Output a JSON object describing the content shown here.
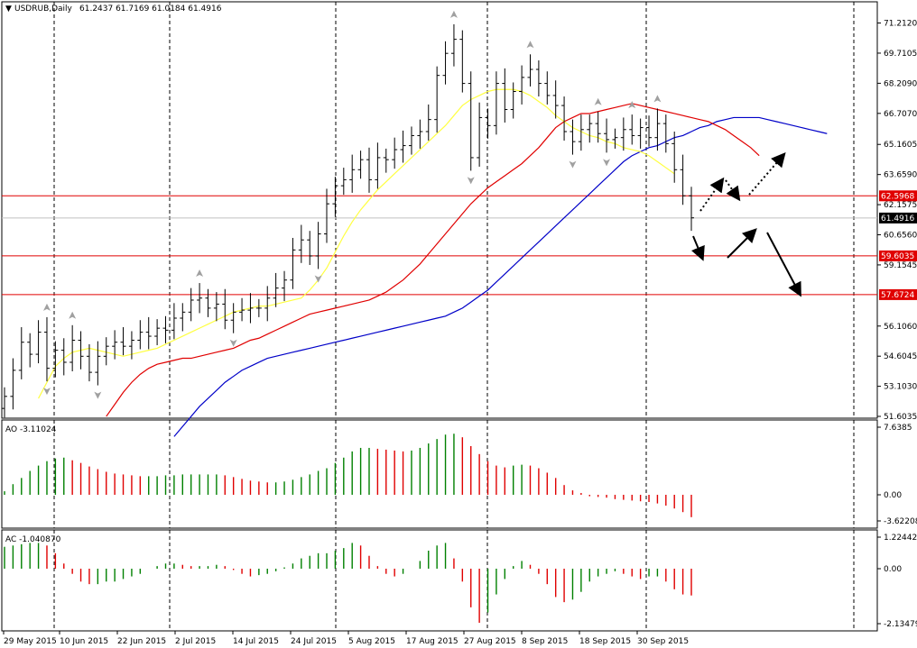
{
  "header": {
    "symbol": "USDRUB,Daily",
    "ohlc": "61.2437 61.7169 61.0184 61.4916"
  },
  "colors": {
    "background": "#ffffff",
    "grid": "#000000",
    "bars": "#000000",
    "jaw": "#0000c8",
    "teeth": "#e00000",
    "lips": "#ffff40",
    "level_line": "#e00000",
    "up_bar": "#008000",
    "down_bar": "#e00000",
    "price_tag_bg": "#000000",
    "level_tag_bg": "#e00000"
  },
  "chart_data": [
    {
      "type": "candlestick",
      "title": "USDRUB,Daily",
      "ylim": [
        51.6035,
        72.0
      ],
      "y_ticks": [
        "71.2120",
        "69.7105",
        "68.2090",
        "66.7070",
        "65.1605",
        "63.6590",
        "62.1575",
        "60.6560",
        "59.1545",
        "56.1060",
        "54.6045",
        "53.1030",
        "51.6035"
      ],
      "x_labels": [
        "29 May 2015",
        "10 Jun 2015",
        "22 Jun 2015",
        "2 Jul 2015",
        "14 Jul 2015",
        "24 Jul 2015",
        "5 Aug 2015",
        "17 Aug 2015",
        "27 Aug 2015",
        "8 Sep 2015",
        "18 Sep 2015",
        "30 Sep 2015"
      ],
      "current_price": "61.4916",
      "levels": [
        "62.5968",
        "59.6035",
        "57.6724"
      ],
      "series": [
        {
          "name": "close",
          "values": [
            52.6,
            53.9,
            55.3,
            54.7,
            55.8,
            54.0,
            54.9,
            54.3,
            55.4,
            54.6,
            53.8,
            54.6,
            55.1,
            55.3,
            55.1,
            55.4,
            55.8,
            55.6,
            56.0,
            55.9,
            56.5,
            56.8,
            57.4,
            57.5,
            57.0,
            57.2,
            56.4,
            56.8,
            56.9,
            57.0,
            57.0,
            57.5,
            58.0,
            58.4,
            59.9,
            60.4,
            59.6,
            60.7,
            62.2,
            63.1,
            63.4,
            63.9,
            64.4,
            63.4,
            64.5,
            64.4,
            64.9,
            65.1,
            65.6,
            65.8,
            66.4,
            68.6,
            69.7,
            70.4,
            68.2,
            64.5,
            66.5,
            66.1,
            68.2,
            66.9,
            67.8,
            68.5,
            68.9,
            68.2,
            67.6,
            67.1,
            65.8,
            65.3,
            65.9,
            66.2,
            65.7,
            65.4,
            65.5,
            65.9,
            65.6,
            66.0,
            65.5,
            66.2,
            65.2,
            63.9,
            62.6,
            61.5
          ]
        },
        {
          "name": "jaw",
          "values": [
            50.6,
            51.1,
            51.6,
            52.1,
            52.5,
            52.9,
            53.3,
            53.6,
            53.9,
            54.1,
            54.3,
            54.5,
            54.6,
            54.7,
            54.8,
            54.9,
            55.0,
            55.1,
            55.2,
            55.3,
            55.4,
            55.5,
            55.6,
            55.7,
            55.8,
            55.9,
            56.0,
            56.1,
            56.2,
            56.3,
            56.4,
            56.5,
            56.6,
            56.8,
            57.0,
            57.3,
            57.6,
            57.9,
            58.3,
            58.7,
            59.1,
            59.5,
            59.9,
            60.3,
            60.7,
            61.1,
            61.5,
            61.9,
            62.3,
            62.7,
            63.1,
            63.5,
            63.9,
            64.3,
            64.6,
            64.8,
            65.0,
            65.1,
            65.3,
            65.5,
            65.6,
            65.8,
            66.0,
            66.1,
            66.3,
            66.4,
            66.5,
            66.5,
            66.5,
            66.5,
            66.4,
            66.3,
            66.2,
            66.1,
            66.0,
            65.9,
            65.8,
            65.7
          ]
        },
        {
          "name": "teeth",
          "values": [
            51.6,
            52.2,
            52.8,
            53.3,
            53.7,
            54.0,
            54.2,
            54.3,
            54.4,
            54.5,
            54.5,
            54.6,
            54.7,
            54.8,
            54.9,
            55.0,
            55.2,
            55.4,
            55.5,
            55.7,
            55.9,
            56.1,
            56.3,
            56.5,
            56.7,
            56.8,
            56.9,
            57.0,
            57.1,
            57.2,
            57.3,
            57.4,
            57.6,
            57.8,
            58.1,
            58.4,
            58.8,
            59.2,
            59.7,
            60.2,
            60.7,
            61.2,
            61.7,
            62.2,
            62.6,
            63.0,
            63.3,
            63.6,
            63.9,
            64.2,
            64.6,
            65.0,
            65.5,
            66.0,
            66.3,
            66.5,
            66.7,
            66.7,
            66.8,
            66.9,
            67.0,
            67.1,
            67.2,
            67.1,
            67.0,
            66.9,
            66.8,
            66.7,
            66.6,
            66.5,
            66.4,
            66.3,
            66.1,
            65.9,
            65.6,
            65.3,
            65.0,
            64.6
          ]
        },
        {
          "name": "lips",
          "values": [
            52.5,
            53.3,
            54.1,
            54.5,
            54.8,
            54.9,
            55.0,
            54.9,
            54.8,
            54.7,
            54.6,
            54.7,
            54.8,
            54.9,
            55.0,
            55.2,
            55.4,
            55.6,
            55.8,
            56.0,
            56.2,
            56.4,
            56.6,
            56.8,
            56.9,
            57.0,
            57.1,
            57.1,
            57.2,
            57.3,
            57.4,
            57.5,
            57.9,
            58.4,
            59.0,
            59.8,
            60.6,
            61.3,
            61.9,
            62.4,
            62.9,
            63.3,
            63.7,
            64.1,
            64.5,
            64.9,
            65.3,
            65.7,
            66.1,
            66.6,
            67.1,
            67.4,
            67.6,
            67.8,
            67.9,
            67.9,
            67.9,
            67.8,
            67.6,
            67.3,
            67.0,
            66.6,
            66.3,
            66.0,
            65.8,
            65.6,
            65.5,
            65.3,
            65.2,
            65.0,
            64.9,
            64.8,
            64.6,
            64.3,
            64.0,
            63.7
          ]
        }
      ]
    },
    {
      "type": "bar",
      "title": "AO -3.11024",
      "ylim": [
        -3.62208,
        7.6385
      ],
      "y_ticks": [
        "7.6385",
        "0.00",
        "-3.62208"
      ],
      "values": [
        0.4,
        1.2,
        1.9,
        2.7,
        3.3,
        3.8,
        4.1,
        4.2,
        3.9,
        3.6,
        3.2,
        2.9,
        2.6,
        2.4,
        2.3,
        2.2,
        2.1,
        2.1,
        2.1,
        2.2,
        2.2,
        2.3,
        2.3,
        2.3,
        2.3,
        2.3,
        2.2,
        2.0,
        1.8,
        1.6,
        1.5,
        1.4,
        1.4,
        1.5,
        1.7,
        2.0,
        2.3,
        2.7,
        3.0,
        3.6,
        4.2,
        4.9,
        5.3,
        5.3,
        5.2,
        5.1,
        5.0,
        4.9,
        5.0,
        5.3,
        5.8,
        6.3,
        6.8,
        6.9,
        6.5,
        5.5,
        4.6,
        3.8,
        3.3,
        3.1,
        3.3,
        3.4,
        3.3,
        3.0,
        2.5,
        1.9,
        1.1,
        0.5,
        0.2,
        -0.2,
        -0.3,
        -0.4,
        -0.6,
        -0.7,
        -0.8,
        -0.9,
        -1.0,
        -1.2,
        -1.5,
        -1.9,
        -2.4,
        -3.1
      ]
    },
    {
      "type": "bar",
      "title": "AC -1.040870",
      "ylim": [
        -2.13479,
        1.22442
      ],
      "y_ticks": [
        "1.22442",
        "0.00",
        "-2.13479"
      ],
      "values": [
        0.85,
        0.9,
        0.95,
        1.0,
        1.0,
        0.9,
        0.6,
        0.2,
        -0.2,
        -0.5,
        -0.6,
        -0.6,
        -0.5,
        -0.5,
        -0.4,
        -0.3,
        -0.2,
        0.0,
        0.1,
        0.2,
        0.2,
        0.15,
        0.1,
        0.1,
        0.1,
        0.15,
        0.1,
        -0.05,
        -0.2,
        -0.3,
        -0.25,
        -0.2,
        -0.1,
        0.05,
        0.2,
        0.4,
        0.5,
        0.6,
        0.6,
        0.7,
        0.8,
        1.0,
        0.9,
        0.5,
        0.1,
        -0.2,
        -0.3,
        -0.2,
        0.0,
        0.3,
        0.7,
        0.9,
        1.0,
        0.4,
        -0.5,
        -1.5,
        -2.1,
        -1.7,
        -1.0,
        -0.4,
        0.1,
        0.3,
        0.15,
        -0.2,
        -0.6,
        -1.1,
        -1.3,
        -1.2,
        -0.9,
        -0.5,
        -0.3,
        -0.2,
        -0.1,
        -0.2,
        -0.3,
        -0.4,
        -0.3,
        -0.3,
        -0.5,
        -0.8,
        -1.0,
        -1.04
      ]
    }
  ]
}
